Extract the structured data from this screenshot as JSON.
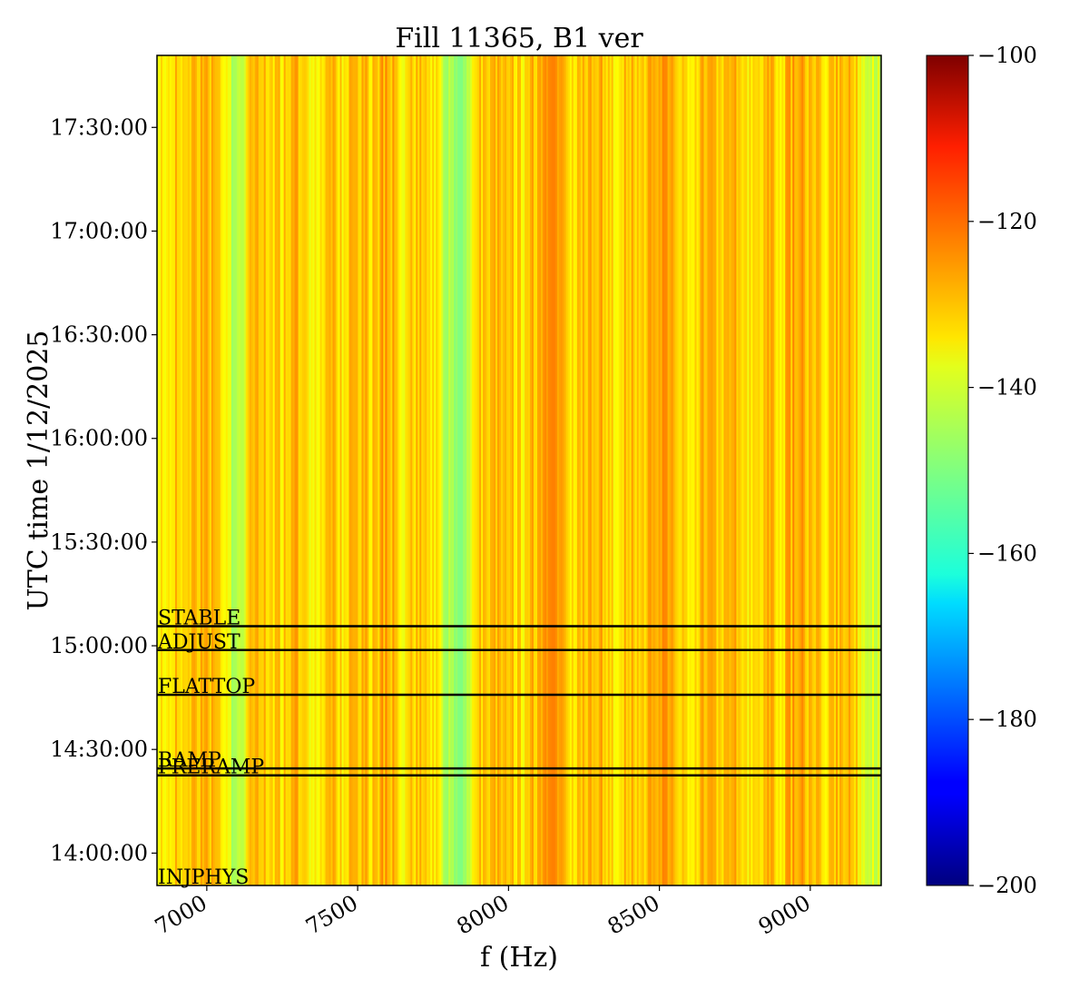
{
  "chart_data": {
    "type": "heatmap",
    "title": "Fill 11365, B1 ver",
    "xlabel": "f (Hz)",
    "ylabel": "UTC time 1/12/2025",
    "xlim": [
      6835,
      9235
    ],
    "x_ticks": [
      7000,
      7500,
      8000,
      8500,
      9000
    ],
    "x_tick_labels": [
      "7000",
      "7500",
      "8000",
      "8500",
      "9000"
    ],
    "ylim": [
      "13:50:38",
      "17:50:50"
    ],
    "y_ticks": [
      "14:00:00",
      "14:30:00",
      "15:00:00",
      "15:30:00",
      "16:00:00",
      "16:30:00",
      "17:00:00",
      "17:30:00"
    ],
    "y_tick_labels": [
      "14:00:00",
      "14:30:00",
      "15:00:00",
      "15:30:00",
      "16:00:00",
      "16:30:00",
      "17:00:00",
      "17:30:00"
    ],
    "colormap": "jet",
    "colorbar": {
      "range": [
        -200,
        -100
      ],
      "ticks": [
        -100,
        -120,
        -140,
        -160,
        -180,
        -200
      ],
      "tick_labels": [
        "−100",
        "−120",
        "−140",
        "−160",
        "−180",
        "−200"
      ]
    },
    "spectrum_pattern": "vertical stripes constant in time; values mostly between -140 and -126, with a few bands near -150 (around 7100 Hz and 7850 Hz)",
    "spectrum_samples": {
      "f": [
        6850,
        6900,
        6950,
        7000,
        7050,
        7100,
        7150,
        7200,
        7250,
        7300,
        7350,
        7400,
        7450,
        7500,
        7550,
        7600,
        7650,
        7700,
        7750,
        7800,
        7850,
        7900,
        7950,
        8000,
        8050,
        8100,
        8150,
        8200,
        8250,
        8300,
        8350,
        8400,
        8450,
        8500,
        8550,
        8600,
        8650,
        8700,
        8750,
        8800,
        8850,
        8900,
        8950,
        9000,
        9050,
        9100,
        9150,
        9200
      ],
      "level": [
        -135,
        -131,
        -133,
        -128,
        -136,
        -148,
        -130,
        -132,
        -134,
        -129,
        -137,
        -131,
        -135,
        -130,
        -133,
        -128,
        -136,
        -132,
        -134,
        -146,
        -150,
        -133,
        -129,
        -131,
        -135,
        -130,
        -128,
        -134,
        -132,
        -129,
        -136,
        -131,
        -133,
        -128,
        -130,
        -135,
        -129,
        -133,
        -131,
        -136,
        -130,
        -134,
        -128,
        -132,
        -135,
        -130,
        -133,
        -142
      ]
    },
    "phase_markers": [
      {
        "label": "STABLE",
        "time": "15:05:40"
      },
      {
        "label": "ADJUST",
        "time": "14:58:45"
      },
      {
        "label": "FLATTOP",
        "time": "14:45:50"
      },
      {
        "label": "RAMP",
        "time": "14:24:30"
      },
      {
        "label": "PRERAMP",
        "time": "14:22:30"
      },
      {
        "label": "INJPHYS",
        "time": "13:50:38"
      }
    ]
  }
}
